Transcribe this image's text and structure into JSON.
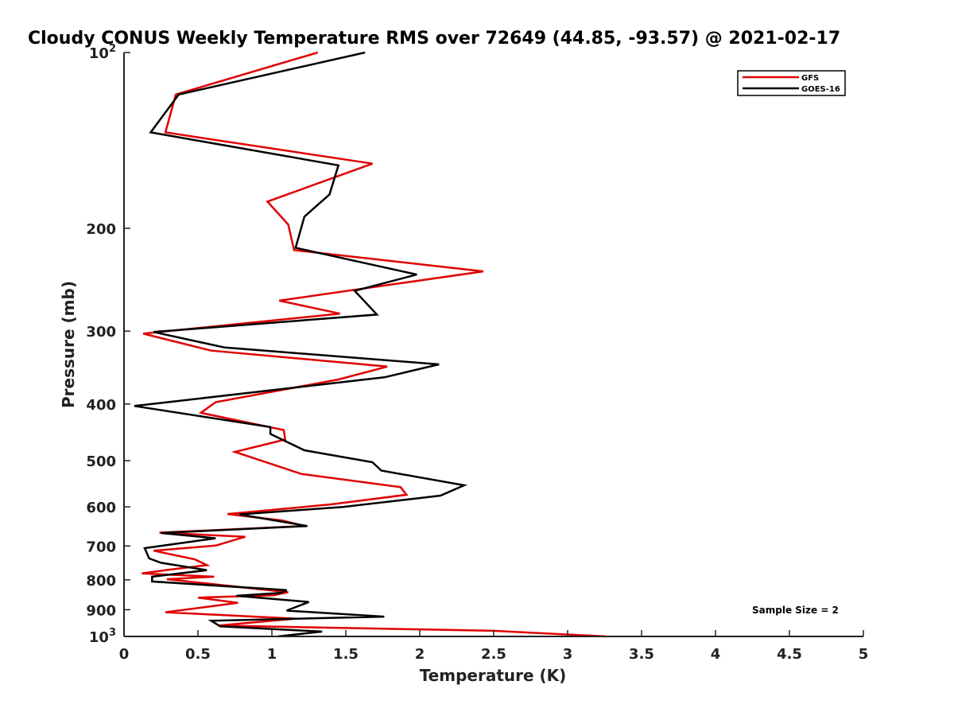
{
  "chart_data": {
    "type": "line",
    "title": "Cloudy CONUS Weekly Temperature RMS over 72649 (44.85, -93.57) @ 2021-02-17",
    "xlabel": "Temperature (K)",
    "ylabel": "Pressure (mb)",
    "xlim": [
      0,
      5
    ],
    "ylim": [
      100,
      1000
    ],
    "y_scale": "log",
    "y_reversed": true,
    "grid": false,
    "legend_position": "top-right",
    "x_ticks": [
      "0",
      "0.5",
      "1",
      "1.5",
      "2",
      "2.5",
      "3",
      "3.5",
      "4",
      "4.5",
      "5"
    ],
    "y_ticks": [
      {
        "value": 100,
        "base": "10",
        "exp": "2"
      },
      {
        "value": 200,
        "label": "200"
      },
      {
        "value": 300,
        "label": "300"
      },
      {
        "value": 400,
        "label": "400"
      },
      {
        "value": 500,
        "label": "500"
      },
      {
        "value": 600,
        "label": "600"
      },
      {
        "value": 700,
        "label": "700"
      },
      {
        "value": 800,
        "label": "800"
      },
      {
        "value": 900,
        "label": "900"
      },
      {
        "value": 1000,
        "base": "10",
        "exp": "3"
      }
    ],
    "annotation": "Sample Size = 2",
    "series": [
      {
        "name": "GFS",
        "color": "#e00000",
        "points": [
          [
            1.31,
            100
          ],
          [
            0.35,
            118
          ],
          [
            0.28,
            137
          ],
          [
            1.68,
            155
          ],
          [
            0.97,
            180
          ],
          [
            1.11,
            197
          ],
          [
            1.15,
            218
          ],
          [
            2.43,
            237
          ],
          [
            1.05,
            266
          ],
          [
            1.46,
            280
          ],
          [
            0.13,
            303
          ],
          [
            0.59,
            324
          ],
          [
            1.78,
            345
          ],
          [
            1.45,
            363
          ],
          [
            0.62,
            397
          ],
          [
            0.52,
            414
          ],
          [
            1.08,
            443
          ],
          [
            1.09,
            460
          ],
          [
            0.75,
            483
          ],
          [
            0.99,
            506
          ],
          [
            1.2,
            527
          ],
          [
            1.87,
            555
          ],
          [
            1.91,
            572
          ],
          [
            1.4,
            594
          ],
          [
            0.7,
            617
          ],
          [
            1.07,
            633
          ],
          [
            1.22,
            647
          ],
          [
            0.24,
            664
          ],
          [
            0.82,
            675
          ],
          [
            0.62,
            699
          ],
          [
            0.2,
            713
          ],
          [
            0.48,
            738
          ],
          [
            0.56,
            755
          ],
          [
            0.3,
            769
          ],
          [
            0.12,
            780
          ],
          [
            0.61,
            790
          ],
          [
            0.29,
            798
          ],
          [
            1.11,
            840
          ],
          [
            1.01,
            850
          ],
          [
            0.5,
            858
          ],
          [
            0.77,
            876
          ],
          [
            0.28,
            909
          ],
          [
            1.16,
            932
          ],
          [
            0.64,
            958
          ],
          [
            2.5,
            978
          ],
          [
            3.26,
            1000
          ]
        ]
      },
      {
        "name": "GOES-16",
        "color": "#000000",
        "points": [
          [
            1.63,
            100
          ],
          [
            0.37,
            118
          ],
          [
            0.18,
            137
          ],
          [
            1.45,
            156
          ],
          [
            1.39,
            175
          ],
          [
            1.22,
            191
          ],
          [
            1.16,
            216
          ],
          [
            1.98,
            240
          ],
          [
            1.56,
            256
          ],
          [
            1.71,
            281
          ],
          [
            0.2,
            301
          ],
          [
            0.68,
            320
          ],
          [
            2.13,
            342
          ],
          [
            1.76,
            360
          ],
          [
            0.07,
            403
          ],
          [
            0.99,
            438
          ],
          [
            0.99,
            450
          ],
          [
            1.06,
            459
          ],
          [
            1.22,
            480
          ],
          [
            1.68,
            503
          ],
          [
            1.74,
            520
          ],
          [
            2.3,
            551
          ],
          [
            2.14,
            574
          ],
          [
            1.48,
            600
          ],
          [
            0.78,
            618
          ],
          [
            1.24,
            647
          ],
          [
            0.25,
            665
          ],
          [
            0.62,
            679
          ],
          [
            0.14,
            706
          ],
          [
            0.17,
            735
          ],
          [
            0.25,
            748
          ],
          [
            0.56,
            770
          ],
          [
            0.19,
            790
          ],
          [
            0.19,
            805
          ],
          [
            1.1,
            833
          ],
          [
            1.06,
            842
          ],
          [
            0.76,
            852
          ],
          [
            1.25,
            873
          ],
          [
            1.1,
            903
          ],
          [
            1.76,
            925
          ],
          [
            0.59,
            940
          ],
          [
            0.65,
            961
          ],
          [
            1.34,
            981
          ],
          [
            1.04,
            1000
          ]
        ]
      }
    ]
  }
}
